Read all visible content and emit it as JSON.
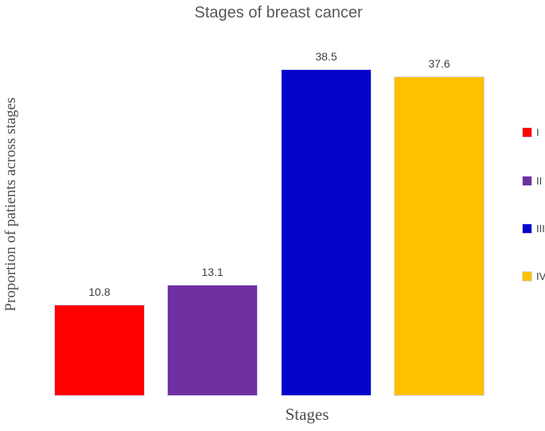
{
  "chart_data": {
    "type": "bar",
    "title": "Stages of breast cancer",
    "xlabel": "Stages",
    "ylabel": "Proportion of patients across stages",
    "categories": [
      "I",
      "II",
      "III",
      "IV"
    ],
    "values": [
      10.8,
      13.1,
      38.5,
      37.6
    ],
    "data_labels": [
      "10.8",
      "13.1",
      "38.5",
      "37.6"
    ],
    "series": [
      {
        "name": "Proportion of patients across stages",
        "values": [
          10.8,
          13.1,
          38.5,
          37.6
        ]
      }
    ],
    "bar_colors": [
      "#ff0000",
      "#7030a0",
      "#0404cb",
      "#ffc000"
    ],
    "bar_border_color": "#d9d9f3",
    "legend": [
      {
        "label": "I",
        "color": "#ff0000"
      },
      {
        "label": "II",
        "color": "#7030a0"
      },
      {
        "label": "III",
        "color": "#0404cb"
      },
      {
        "label": "IV",
        "color": "#ffc000"
      }
    ],
    "legend_position": "right",
    "grid": false,
    "axis_lines": false,
    "title_color": "#595959",
    "axis_title_color": "#4d4d4d",
    "data_label_color": "#404040"
  }
}
